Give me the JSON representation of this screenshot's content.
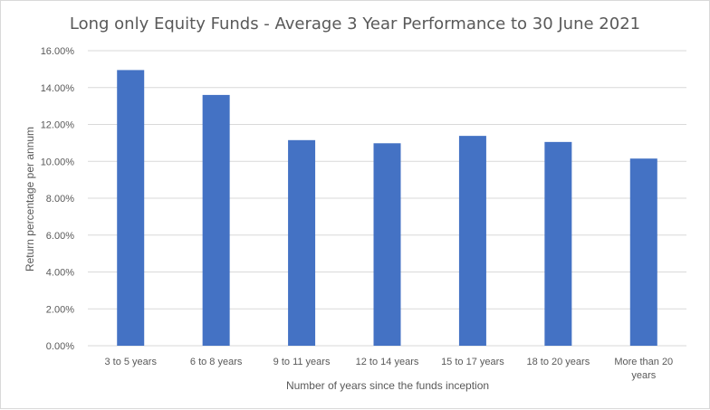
{
  "chart_data": {
    "type": "bar",
    "title": "Long only Equity Funds - Average 3 Year Performance to 30 June 2021",
    "xlabel": "Number  of years since the funds inception",
    "ylabel": "Return percentage per annum",
    "categories": [
      [
        "3 to 5 years"
      ],
      [
        "6 to 8 years"
      ],
      [
        "9 to 11 years"
      ],
      [
        "12 to 14 years"
      ],
      [
        "15 to 17 years"
      ],
      [
        "18 to 20 years"
      ],
      [
        "More than 20",
        "years"
      ]
    ],
    "values": [
      14.95,
      13.6,
      11.15,
      10.98,
      11.38,
      11.05,
      10.15
    ],
    "ylim": [
      0,
      16
    ],
    "yticks": [
      "0.00%",
      "2.00%",
      "4.00%",
      "6.00%",
      "8.00%",
      "10.00%",
      "12.00%",
      "14.00%",
      "16.00%"
    ],
    "grid": true,
    "colors": {
      "bar": "#4472c4",
      "grid": "#d9d9d9",
      "text": "#595959"
    }
  }
}
